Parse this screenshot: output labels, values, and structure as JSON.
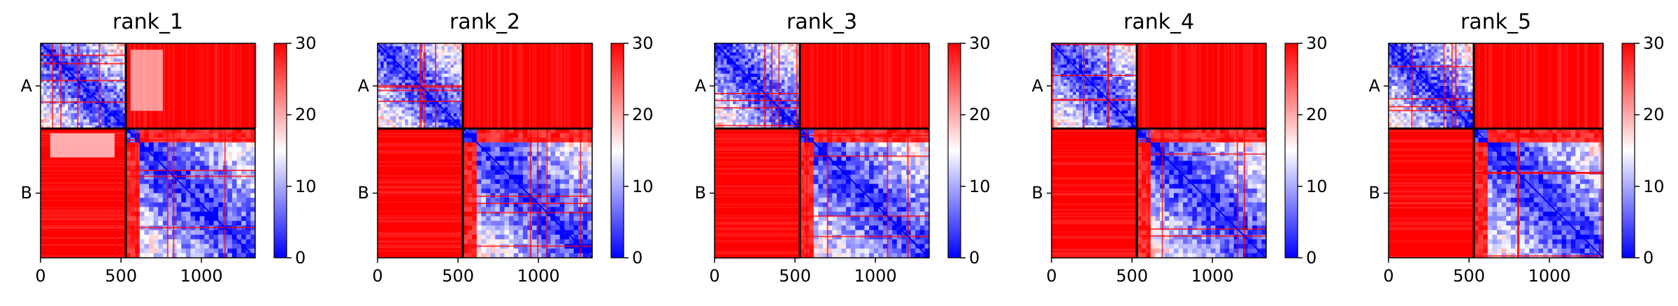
{
  "colors": {
    "low": "#0000ff",
    "mid": "#ffffff",
    "high": "#ff0000",
    "divider": "#000000"
  },
  "chart_data": [
    {
      "type": "heatmap",
      "title": "rank_1",
      "xticks": [
        "0",
        "500",
        "1000"
      ],
      "xtick_values": [
        0,
        500,
        1000
      ],
      "xlim": [
        0,
        1334
      ],
      "ylim": [
        0,
        1334
      ],
      "chains": [
        {
          "name": "A",
          "start": 0,
          "end": 530
        },
        {
          "name": "B",
          "start": 530,
          "end": 1334
        }
      ],
      "colorbar": {
        "min": 0,
        "max": 30,
        "ticks": [
          "0",
          "10",
          "20",
          "30"
        ],
        "tick_values": [
          0,
          10,
          20,
          30
        ],
        "colormap": "bwr"
      },
      "blocks": {
        "AA": "low",
        "AB": "high-with-light-patches",
        "BA": "high-with-light-patches",
        "BB": "low"
      }
    },
    {
      "type": "heatmap",
      "title": "rank_2",
      "xticks": [
        "0",
        "500",
        "1000"
      ],
      "xtick_values": [
        0,
        500,
        1000
      ],
      "xlim": [
        0,
        1334
      ],
      "ylim": [
        0,
        1334
      ],
      "chains": [
        {
          "name": "A",
          "start": 0,
          "end": 530
        },
        {
          "name": "B",
          "start": 530,
          "end": 1334
        }
      ],
      "colorbar": {
        "min": 0,
        "max": 30,
        "ticks": [
          "0",
          "10",
          "20",
          "30"
        ],
        "tick_values": [
          0,
          10,
          20,
          30
        ],
        "colormap": "bwr"
      },
      "blocks": {
        "AA": "low",
        "AB": "high",
        "BA": "high",
        "BB": "low"
      }
    },
    {
      "type": "heatmap",
      "title": "rank_3",
      "xticks": [
        "0",
        "500",
        "1000"
      ],
      "xtick_values": [
        0,
        500,
        1000
      ],
      "xlim": [
        0,
        1334
      ],
      "ylim": [
        0,
        1334
      ],
      "chains": [
        {
          "name": "A",
          "start": 0,
          "end": 530
        },
        {
          "name": "B",
          "start": 530,
          "end": 1334
        }
      ],
      "colorbar": {
        "min": 0,
        "max": 30,
        "ticks": [
          "0",
          "10",
          "20",
          "30"
        ],
        "tick_values": [
          0,
          10,
          20,
          30
        ],
        "colormap": "bwr"
      },
      "blocks": {
        "AA": "low",
        "AB": "high",
        "BA": "high",
        "BB": "low"
      }
    },
    {
      "type": "heatmap",
      "title": "rank_4",
      "xticks": [
        "0",
        "500",
        "1000"
      ],
      "xtick_values": [
        0,
        500,
        1000
      ],
      "xlim": [
        0,
        1334
      ],
      "ylim": [
        0,
        1334
      ],
      "chains": [
        {
          "name": "A",
          "start": 0,
          "end": 530
        },
        {
          "name": "B",
          "start": 530,
          "end": 1334
        }
      ],
      "colorbar": {
        "min": 0,
        "max": 30,
        "ticks": [
          "0",
          "10",
          "20",
          "30"
        ],
        "tick_values": [
          0,
          10,
          20,
          30
        ],
        "colormap": "bwr"
      },
      "blocks": {
        "AA": "low",
        "AB": "high",
        "BA": "high",
        "BB": "low"
      }
    },
    {
      "type": "heatmap",
      "title": "rank_5",
      "xticks": [
        "0",
        "500",
        "1000"
      ],
      "xtick_values": [
        0,
        500,
        1000
      ],
      "xlim": [
        0,
        1334
      ],
      "ylim": [
        0,
        1334
      ],
      "chains": [
        {
          "name": "A",
          "start": 0,
          "end": 530
        },
        {
          "name": "B",
          "start": 530,
          "end": 1334
        }
      ],
      "colorbar": {
        "min": 0,
        "max": 30,
        "ticks": [
          "0",
          "10",
          "20",
          "30"
        ],
        "tick_values": [
          0,
          10,
          20,
          30
        ],
        "colormap": "bwr"
      },
      "blocks": {
        "AA": "low",
        "AB": "high",
        "BA": "high",
        "BB": "low"
      }
    }
  ]
}
